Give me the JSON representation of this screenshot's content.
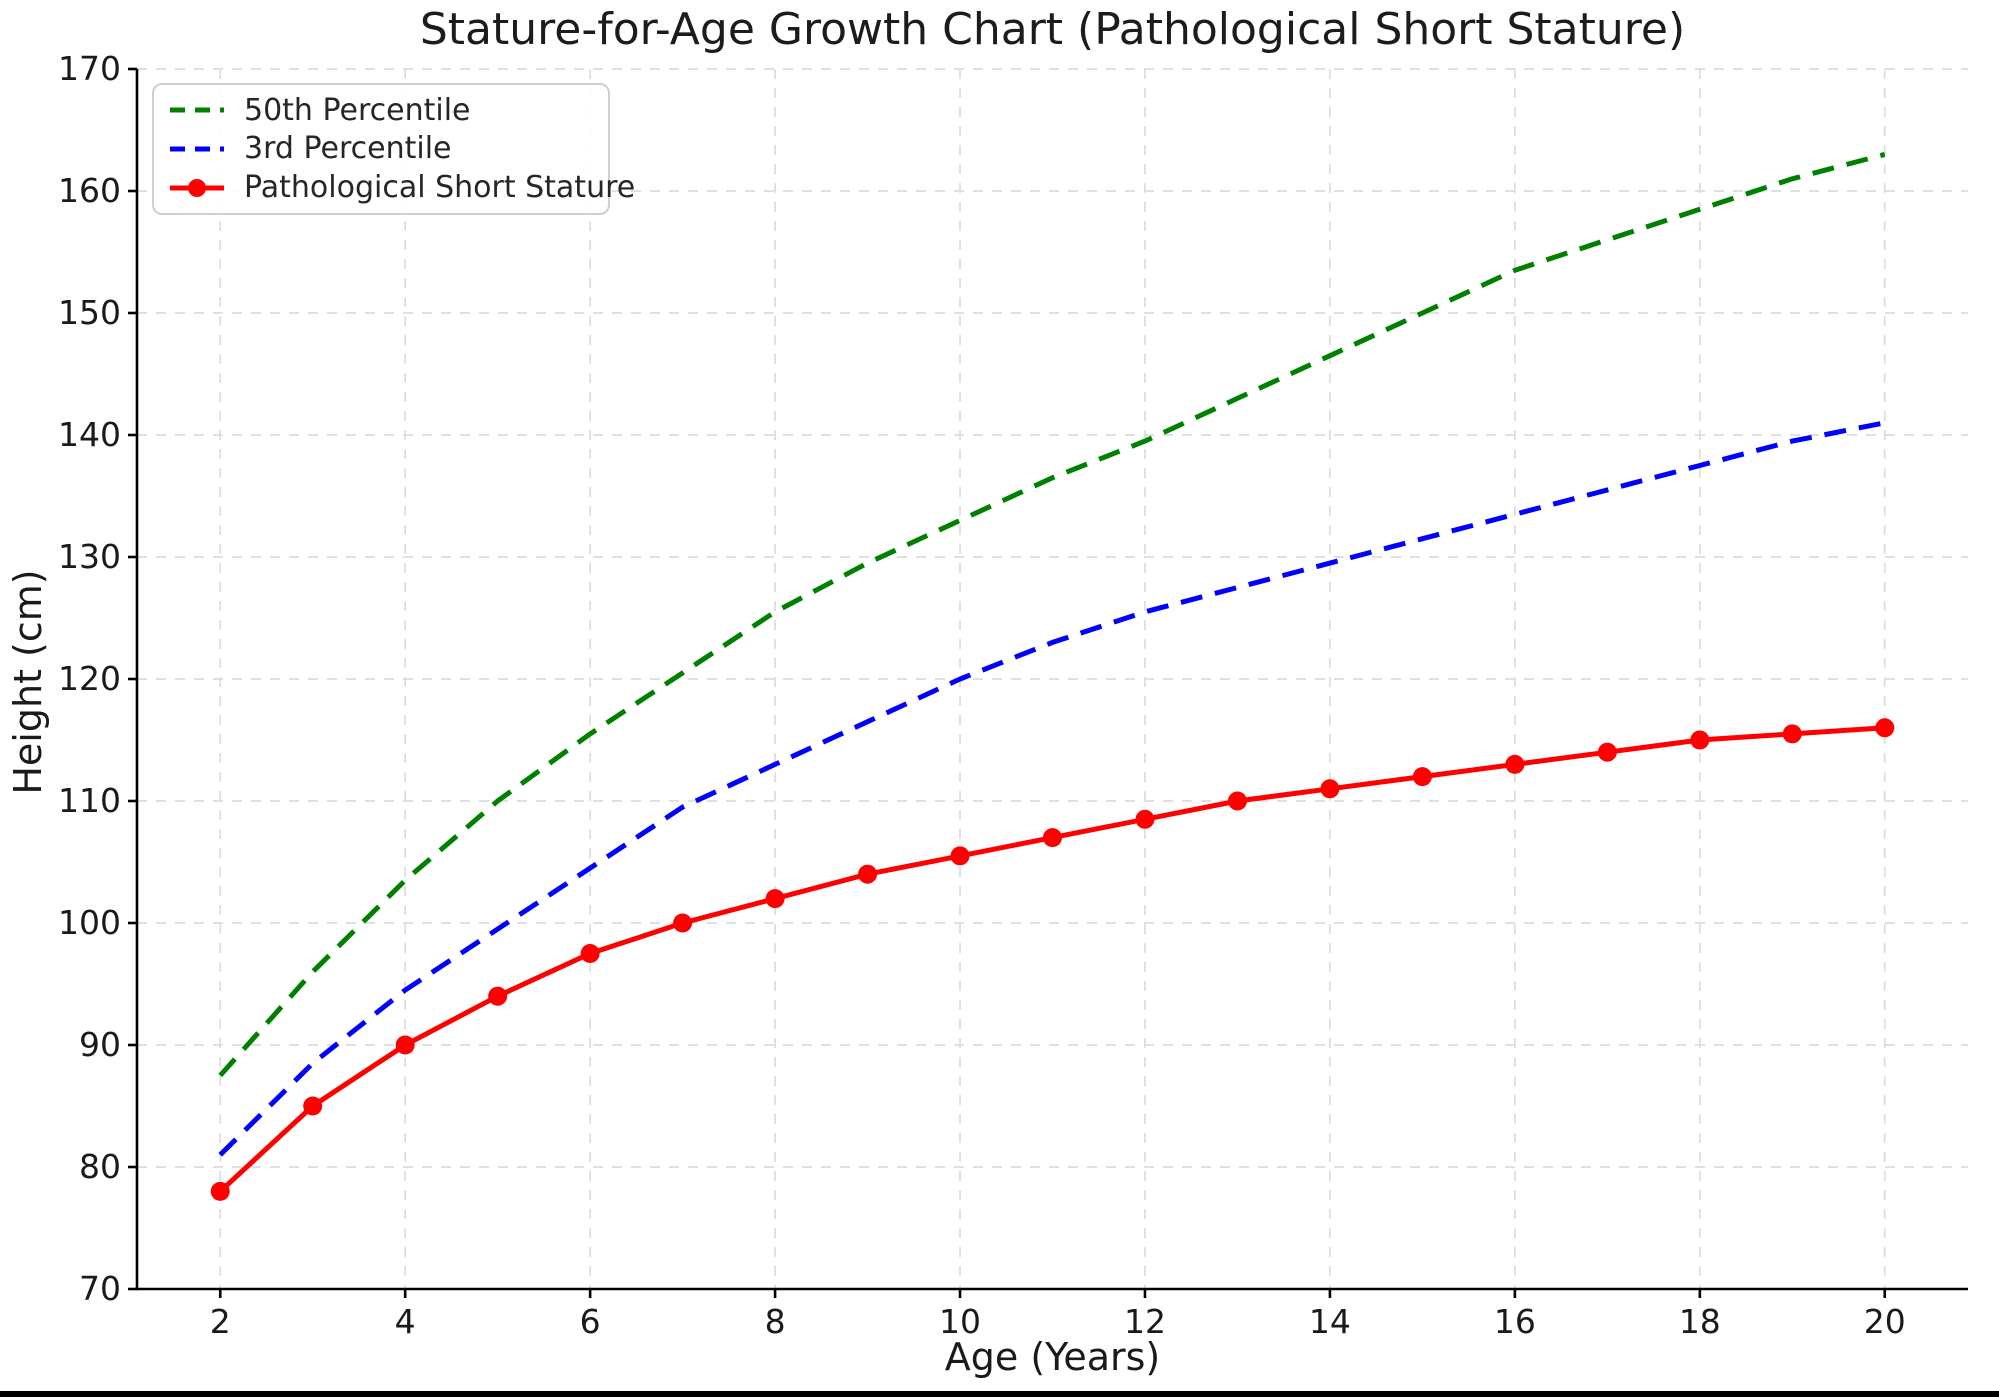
{
  "window": {
    "background": "#ffffff",
    "bottom_bar_color": "#000000"
  },
  "chart_data": {
    "type": "line",
    "title": "Stature-for-Age Growth Chart (Pathological Short Stature)",
    "xlabel": "Age (Years)",
    "ylabel": "Height (cm)",
    "xlim": [
      1.1,
      20.9
    ],
    "ylim": [
      70,
      170
    ],
    "x_ticks": [
      2,
      4,
      6,
      8,
      10,
      12,
      14,
      16,
      18,
      20
    ],
    "y_ticks": [
      70,
      80,
      90,
      100,
      110,
      120,
      130,
      140,
      150,
      160,
      170
    ],
    "grid": {
      "visible": true,
      "linestyle": "dashed",
      "color": "#dcdcdc"
    },
    "legend_position": "upper-left",
    "axis_color": "#000000",
    "x": [
      2,
      3,
      4,
      5,
      6,
      7,
      8,
      9,
      10,
      11,
      12,
      13,
      14,
      15,
      16,
      17,
      18,
      19,
      20
    ],
    "series": [
      {
        "name": "50th Percentile",
        "color": "#008000",
        "style": "dashed",
        "marker": "none",
        "values": [
          87.5,
          96,
          103.5,
          110,
          115.5,
          120.5,
          125.5,
          129.5,
          133,
          136.5,
          139.5,
          143,
          146.5,
          150,
          153.5,
          156,
          158.5,
          161,
          163
        ]
      },
      {
        "name": "3rd Percentile",
        "color": "#0000ff",
        "style": "dashed",
        "marker": "none",
        "values": [
          81,
          88.5,
          94.5,
          99.5,
          104.5,
          109.5,
          113,
          116.5,
          120,
          123,
          125.5,
          127.5,
          129.5,
          131.5,
          133.5,
          135.5,
          137.5,
          139.5,
          141
        ]
      },
      {
        "name": "Pathological Short Stature",
        "color": "#ff0000",
        "style": "solid",
        "marker": "circle",
        "values": [
          78,
          85,
          90,
          94,
          97.5,
          100,
          102,
          104,
          105.5,
          107,
          108.5,
          110,
          111,
          112,
          113,
          114,
          115,
          115.5,
          116
        ]
      }
    ]
  }
}
